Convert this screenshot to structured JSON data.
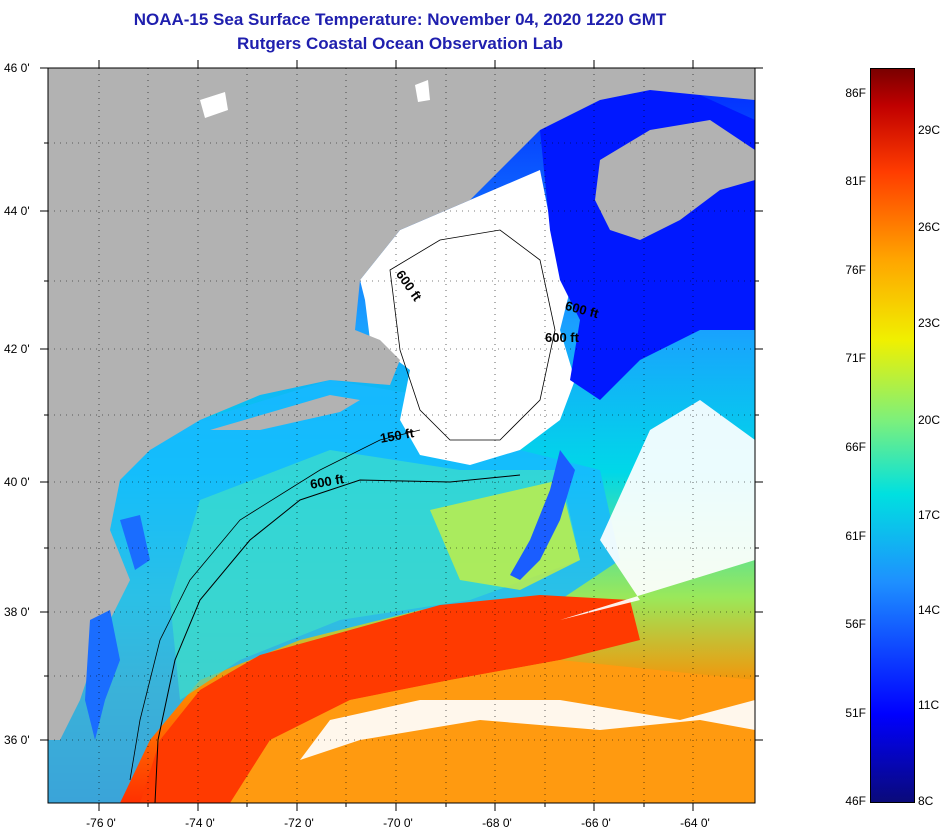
{
  "title_line1": "NOAA-15 Sea Surface Temperature:  November 04, 2020 1220 GMT",
  "title_line2": "Rutgers Coastal Ocean Observation Lab",
  "lat_labels": [
    "46 0'",
    "44 0'",
    "42 0'",
    "40 0'",
    "38 0'",
    "36 0'"
  ],
  "lon_labels": [
    "-76 0'",
    "-74 0'",
    "-72 0'",
    "-70 0'",
    "-68 0'",
    "-66 0'",
    "-64 0'"
  ],
  "contour_labels": [
    "600 ft",
    "600 ft",
    "600 ft",
    "150 ft",
    "600 ft"
  ],
  "colorbar": {
    "fahrenheit": [
      "86F",
      "81F",
      "76F",
      "71F",
      "66F",
      "61F",
      "56F",
      "51F",
      "46F"
    ],
    "celsius": [
      "29C",
      "26C",
      "23C",
      "20C",
      "17C",
      "14C",
      "11C",
      "8C"
    ]
  },
  "colors": {
    "land": "#b2b2b2",
    "cloud": "#ffffff",
    "title": "#1f1fae",
    "cold": "#0000ff",
    "mid": "#00e0e0",
    "warm": "#ff3c00"
  }
}
